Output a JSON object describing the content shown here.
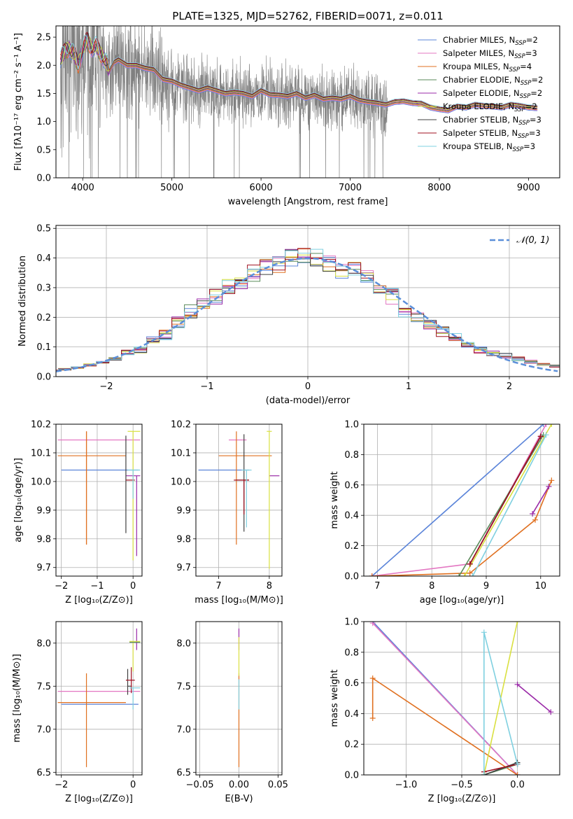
{
  "figure": {
    "title": "PLATE=1325, MJD=52762, FIBERID=0071, z=0.011"
  },
  "colors": {
    "chabrier_miles": "#5b84d9",
    "salpeter_miles": "#e377c2",
    "kroupa_miles": "#e07020",
    "chabrier_elodie": "#5a8a5a",
    "salpeter_elodie": "#9a2aa8",
    "kroupa_elodie": "#d9e040",
    "chabrier_stelib": "#404040",
    "salpeter_stelib": "#a01020",
    "kroupa_stelib": "#7fd0e0",
    "observed": "#808080",
    "gaussian": "#5b8fd9"
  },
  "chart_data": [
    {
      "id": "spectrum",
      "type": "line",
      "xlabel": "wavelength [Angstrom, rest frame]",
      "ylabel": "Flux [fλ10⁻¹⁷ erg cm⁻² s⁻¹ A⁻¹]",
      "xlim": [
        3700,
        9350
      ],
      "ylim": [
        0,
        2.7
      ],
      "xticks": [
        "4000",
        "5000",
        "6000",
        "7000",
        "8000",
        "9000"
      ],
      "yticks": [
        "0.0",
        "0.5",
        "1.0",
        "1.5",
        "2.0",
        "2.5"
      ],
      "legend_position": "top-right",
      "legend": [
        "Chabrier MILES, N_SSP=2",
        "Salpeter MILES, N_SSP=3",
        "Kroupa MILES, N_SSP=4",
        "Chabrier ELODIE, N_SSP=2",
        "Salpeter ELODIE, N_SSP=2",
        "Kroupa ELODIE, N_SSP=2",
        "Chabrier STELIB, N_SSP=3",
        "Salpeter STELIB, N_SSP=3",
        "Kroupa STELIB, N_SSP=3"
      ],
      "model_continuum": {
        "x": [
          3750,
          3800,
          3850,
          3900,
          3950,
          4000,
          4050,
          4100,
          4150,
          4200,
          4250,
          4300,
          4350,
          4400,
          4450,
          4500,
          4600,
          4700,
          4800,
          4900,
          5000,
          5100,
          5200,
          5300,
          5400,
          5500,
          5600,
          5700,
          5800,
          5900,
          6000,
          6100,
          6200,
          6300,
          6400,
          6500,
          6600,
          6700,
          6800,
          6900,
          7000,
          7100,
          7200,
          7300,
          7400,
          7500,
          7600,
          7700,
          7800,
          7900,
          8000,
          8100,
          8200,
          8300,
          8400,
          8500,
          8600,
          8700,
          8800,
          8900,
          9000,
          9100
        ],
        "y": [
          2.1,
          2.25,
          2.3,
          2.2,
          2.0,
          2.3,
          2.45,
          2.3,
          2.35,
          2.2,
          2.1,
          1.9,
          2.05,
          2.1,
          2.05,
          2.0,
          2.0,
          1.95,
          1.92,
          1.75,
          1.72,
          1.65,
          1.6,
          1.55,
          1.6,
          1.55,
          1.5,
          1.52,
          1.5,
          1.45,
          1.55,
          1.48,
          1.47,
          1.45,
          1.5,
          1.42,
          1.47,
          1.4,
          1.42,
          1.4,
          1.45,
          1.38,
          1.35,
          1.33,
          1.3,
          1.35,
          1.36,
          1.33,
          1.32,
          1.25,
          1.22,
          1.2,
          1.27,
          1.25,
          1.3,
          1.28,
          1.27,
          1.25,
          1.3,
          1.28,
          1.25,
          1.24
        ]
      },
      "observed_x_range": [
        3750,
        7420
      ]
    },
    {
      "id": "residuals",
      "type": "bar",
      "xlabel": "(data-model)/error",
      "ylabel": "Normed distribution",
      "xlim": [
        -2.5,
        2.5
      ],
      "ylim": [
        0,
        0.51
      ],
      "xticks": [
        "−2",
        "−1",
        "0",
        "1",
        "2"
      ],
      "yticks": [
        "0.0",
        "0.1",
        "0.2",
        "0.3",
        "0.4",
        "0.5"
      ],
      "legend_position": "top-right",
      "legend": [
        "𝒩(0, 1)"
      ],
      "gaussian": {
        "mean": 0,
        "sigma": 1
      },
      "hist_base": [
        0.02,
        0.025,
        0.03,
        0.04,
        0.05,
        0.06,
        0.08,
        0.09,
        0.12,
        0.14,
        0.18,
        0.22,
        0.25,
        0.27,
        0.3,
        0.32,
        0.35,
        0.37,
        0.38,
        0.4,
        0.41,
        0.4,
        0.38,
        0.36,
        0.36,
        0.34,
        0.3,
        0.27,
        0.22,
        0.2,
        0.17,
        0.15,
        0.13,
        0.11,
        0.09,
        0.08,
        0.07,
        0.06,
        0.05,
        0.04,
        0.035,
        0.03,
        0.025
      ]
    },
    {
      "id": "age-vs-Z",
      "type": "scatter",
      "xlabel": "Z [log₁₀(Z/Z⊙)]",
      "ylabel": "age  [log₁₀(age/yr)]",
      "xlim": [
        -2.15,
        0.25
      ],
      "ylim": [
        9.67,
        10.2
      ],
      "xticks": [
        "−2",
        "−1",
        "0"
      ],
      "yticks": [
        "9.7",
        "9.8",
        "9.9",
        "10.0",
        "10.1",
        "10.2"
      ],
      "points": [
        {
          "model": "chabrier_miles",
          "x": -0.5,
          "y": 10.04,
          "xerr": [
            1.5,
            0.65
          ],
          "yerr": [
            0,
            0
          ]
        },
        {
          "model": "salpeter_miles",
          "x": -0.8,
          "y": 10.145,
          "xerr": [
            1.3,
            1.0
          ],
          "yerr": [
            0,
            0
          ]
        },
        {
          "model": "kroupa_miles",
          "x": -1.3,
          "y": 10.09,
          "xerr": [
            0.8,
            1.1
          ],
          "yerr": [
            0.31,
            0.085
          ]
        },
        {
          "model": "kroupa_miles",
          "x": -1.3,
          "y": 10.09,
          "xerr": [
            0,
            0
          ],
          "yerr": [
            0.31,
            0.085
          ]
        },
        {
          "model": "salpeter_elodie",
          "x": 0.1,
          "y": 10.02,
          "xerr": [
            0.3,
            0.1
          ],
          "yerr": [
            0.28,
            0.0
          ]
        },
        {
          "model": "chabrier_stelib",
          "x": -0.2,
          "y": 10.0,
          "xerr": [
            0,
            0
          ],
          "yerr": [
            0.18,
            0.16
          ]
        },
        {
          "model": "salpeter_stelib",
          "x": -0.05,
          "y": 10.005,
          "xerr": [
            0.15,
            0.1
          ],
          "yerr": [
            0,
            0
          ]
        },
        {
          "model": "kroupa_elodie",
          "x": 0.0,
          "y": 10.175,
          "xerr": [
            0.15,
            0.2
          ],
          "yerr": [
            0.45,
            0.0
          ]
        },
        {
          "model": "kroupa_stelib",
          "x": 0.0,
          "y": 10.04,
          "xerr": [
            0.15,
            0.2
          ],
          "yerr": [
            0.1,
            0.0
          ]
        }
      ]
    },
    {
      "id": "age-vs-mass",
      "type": "scatter",
      "xlabel": "mass [log₁₀(M/M⊙)]",
      "ylabel": "",
      "xlim": [
        6.55,
        8.25
      ],
      "ylim": [
        9.67,
        10.2
      ],
      "xticks": [
        "7",
        "8"
      ],
      "yticks": [
        "9.7",
        "9.8",
        "9.9",
        "10.0",
        "10.1",
        "10.2"
      ],
      "points": [
        {
          "model": "chabrier_miles",
          "x": 7.2,
          "y": 10.04,
          "xerr": [
            0.6,
            0.4
          ],
          "yerr": [
            0,
            0
          ]
        },
        {
          "model": "salpeter_miles",
          "x": 7.45,
          "y": 10.145,
          "xerr": [
            0.25,
            0.1
          ],
          "yerr": [
            0,
            0
          ]
        },
        {
          "model": "kroupa_miles",
          "x": 7.35,
          "y": 10.09,
          "xerr": [
            0.35,
            0.7
          ],
          "yerr": [
            0.31,
            0.085
          ]
        },
        {
          "model": "salpeter_elodie",
          "x": 8.0,
          "y": 10.02,
          "xerr": [
            0,
            0.2
          ],
          "yerr": [
            0,
            0
          ]
        },
        {
          "model": "chabrier_stelib",
          "x": 7.5,
          "y": 10.005,
          "xerr": [
            0.15,
            0.1
          ],
          "yerr": [
            0.18,
            0.16
          ]
        },
        {
          "model": "salpeter_stelib",
          "x": 7.5,
          "y": 10.005,
          "xerr": [
            0.2,
            0.1
          ],
          "yerr": [
            0.12,
            0.0
          ]
        },
        {
          "model": "kroupa_elodie",
          "x": 8.0,
          "y": 10.175,
          "xerr": [
            0.05,
            0.05
          ],
          "yerr": [
            0.48,
            0.0
          ]
        },
        {
          "model": "kroupa_stelib",
          "x": 7.55,
          "y": 10.04,
          "xerr": [
            0.1,
            0.1
          ],
          "yerr": [
            0.2,
            0.0
          ]
        }
      ]
    },
    {
      "id": "weight-vs-age",
      "type": "line",
      "xlabel": "age  [log₁₀(age/yr)]",
      "ylabel": "mass weight",
      "xlim": [
        6.75,
        10.35
      ],
      "ylim": [
        0,
        1
      ],
      "xticks": [
        "7",
        "8",
        "9",
        "10"
      ],
      "yticks": [
        "0.0",
        "0.2",
        "0.4",
        "0.6",
        "0.8",
        "1.0"
      ],
      "series": [
        {
          "model": "chabrier_miles",
          "x": [
            6.9,
            10.05
          ],
          "y": [
            0.0,
            1.0
          ]
        },
        {
          "model": "salpeter_miles",
          "x": [
            6.9,
            8.7,
            10.1
          ],
          "y": [
            0.0,
            0.08,
            1.0
          ]
        },
        {
          "model": "kroupa_miles",
          "x": [
            6.9,
            8.7,
            9.9,
            10.2
          ],
          "y": [
            0.0,
            0.02,
            0.37,
            0.63
          ]
        },
        {
          "model": "chabrier_elodie",
          "x": [
            8.5,
            10.05
          ],
          "y": [
            0.0,
            0.93
          ]
        },
        {
          "model": "salpeter_elodie",
          "x": [
            9.85,
            10.15
          ],
          "y": [
            0.41,
            0.59
          ]
        },
        {
          "model": "kroupa_elodie",
          "x": [
            8.6,
            10.2
          ],
          "y": [
            0.0,
            1.0
          ]
        },
        {
          "model": "chabrier_stelib",
          "x": [
            8.7,
            10.0
          ],
          "y": [
            0.08,
            0.92
          ]
        },
        {
          "model": "salpeter_stelib",
          "x": [
            8.7,
            10.0
          ],
          "y": [
            0.08,
            0.92
          ]
        },
        {
          "model": "kroupa_stelib",
          "x": [
            8.75,
            10.1
          ],
          "y": [
            0.0,
            0.93
          ]
        }
      ]
    },
    {
      "id": "mass-vs-Z",
      "type": "scatter",
      "xlabel": "Z [log₁₀(Z/Z⊙)]",
      "ylabel": "mass [log₁₀(M/M⊙)]",
      "xlim": [
        -2.15,
        0.25
      ],
      "ylim": [
        6.47,
        8.25
      ],
      "xticks": [
        "−2",
        "0"
      ],
      "yticks": [
        "6.5",
        "7.0",
        "7.5",
        "8.0"
      ],
      "points": [
        {
          "model": "chabrier_miles",
          "x": -0.5,
          "y": 7.29,
          "xerr": [
            1.5,
            0.65
          ],
          "yerr": [
            0,
            0
          ]
        },
        {
          "model": "salpeter_miles",
          "x": -0.8,
          "y": 7.44,
          "xerr": [
            1.3,
            1.0
          ],
          "yerr": [
            0,
            0
          ]
        },
        {
          "model": "kroupa_miles",
          "x": -1.3,
          "y": 7.31,
          "xerr": [
            0.8,
            1.1
          ],
          "yerr": [
            0.75,
            0.34
          ]
        },
        {
          "model": "salpeter_elodie",
          "x": 0.1,
          "y": 8.02,
          "xerr": [
            0,
            0
          ],
          "yerr": [
            0.1,
            0.15
          ]
        },
        {
          "model": "chabrier_stelib",
          "x": -0.15,
          "y": 7.5,
          "xerr": [
            0,
            0.1
          ],
          "yerr": [
            0.1,
            0.2
          ]
        },
        {
          "model": "salpeter_stelib",
          "x": -0.05,
          "y": 7.57,
          "xerr": [
            0.15,
            0.1
          ],
          "yerr": [
            0.15,
            0.15
          ]
        },
        {
          "model": "kroupa_elodie",
          "x": 0.0,
          "y": 8.02,
          "xerr": [
            0.1,
            0.2
          ],
          "yerr": [
            0.35,
            0.0
          ]
        },
        {
          "model": "kroupa_stelib",
          "x": 0.0,
          "y": 7.48,
          "xerr": [
            0.1,
            0.2
          ],
          "yerr": [
            0.25,
            0.0
          ]
        },
        {
          "model": "chabrier_elodie",
          "x": 0.0,
          "y": 8.01,
          "xerr": [
            0.1,
            0.2
          ],
          "yerr": [
            0,
            0
          ]
        }
      ]
    },
    {
      "id": "mass-vs-EBV",
      "type": "scatter",
      "xlabel": "E(B-V)",
      "ylabel": "",
      "xlim": [
        -0.055,
        0.055
      ],
      "ylim": [
        6.47,
        8.25
      ],
      "xticks": [
        "−0.05",
        "0.00",
        "0.05"
      ],
      "yticks": [
        "6.5",
        "7.0",
        "7.5",
        "8.0"
      ],
      "points": [
        {
          "model": "kroupa_miles",
          "x": 0.0,
          "y": 7.31,
          "xerr": [
            0,
            0
          ],
          "yerr": [
            0.75,
            0.34
          ]
        },
        {
          "model": "salpeter_elodie",
          "x": 0.0,
          "y": 8.02,
          "xerr": [
            0,
            0
          ],
          "yerr": [
            0.1,
            0.15
          ]
        },
        {
          "model": "kroupa_elodie",
          "x": 0.0,
          "y": 8.02,
          "xerr": [
            0,
            0
          ],
          "yerr": [
            0.4,
            0.05
          ]
        },
        {
          "model": "kroupa_stelib",
          "x": 0.0,
          "y": 7.48,
          "xerr": [
            0,
            0
          ],
          "yerr": [
            0.25,
            0.1
          ]
        }
      ]
    },
    {
      "id": "weight-vs-Z",
      "type": "line",
      "xlabel": "Z [log₁₀(Z/Z⊙)]",
      "ylabel": "mass weight",
      "xlim": [
        -1.38,
        0.38
      ],
      "ylim": [
        0,
        1
      ],
      "xticks": [
        "−1.0",
        "−0.5",
        "0.0"
      ],
      "yticks": [
        "0.0",
        "0.2",
        "0.4",
        "0.6",
        "0.8",
        "1.0"
      ],
      "series": [
        {
          "model": "chabrier_miles",
          "x": [
            -1.3,
            0.0
          ],
          "y": [
            1.0,
            0.0
          ]
        },
        {
          "model": "salpeter_miles",
          "x": [
            -1.3,
            0.0
          ],
          "y": [
            0.99,
            0.0
          ]
        },
        {
          "model": "kroupa_miles",
          "x": [
            -1.3,
            -1.3,
            0.0
          ],
          "y": [
            0.37,
            0.63,
            0.0
          ]
        },
        {
          "model": "chabrier_elodie",
          "x": [
            -0.3,
            0.0
          ],
          "y": [
            0.0,
            0.07
          ]
        },
        {
          "model": "salpeter_elodie",
          "x": [
            0.0,
            0.3
          ],
          "y": [
            0.59,
            0.41
          ]
        },
        {
          "model": "kroupa_elodie",
          "x": [
            -0.3,
            0.0
          ],
          "y": [
            0.0,
            1.0
          ]
        },
        {
          "model": "chabrier_stelib",
          "x": [
            -0.3,
            0.0
          ],
          "y": [
            0.0,
            0.08
          ]
        },
        {
          "model": "salpeter_stelib",
          "x": [
            -0.3,
            0.0
          ],
          "y": [
            0.02,
            0.07
          ]
        },
        {
          "model": "kroupa_stelib",
          "x": [
            -0.3,
            -0.3,
            0.0
          ],
          "y": [
            0.0,
            0.93,
            0.07
          ]
        }
      ]
    }
  ]
}
